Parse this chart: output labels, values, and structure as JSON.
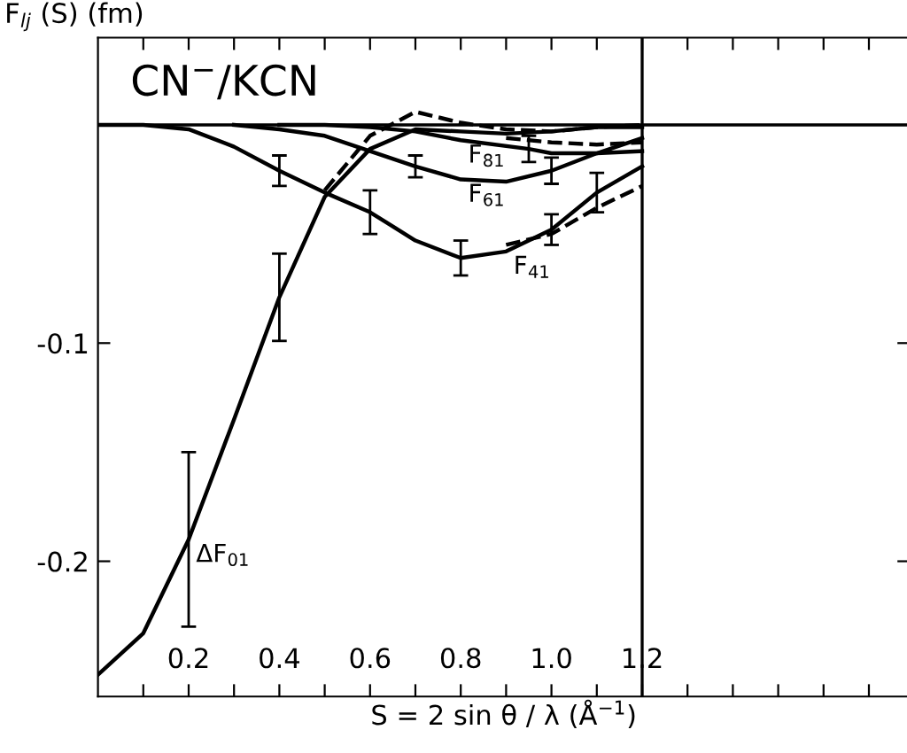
{
  "chart_data": {
    "type": "line",
    "ylabel": "F$_{lj}$ (S) (fm)",
    "xlabel": "S = 2 sin θ / λ (Å$^{−1}$)",
    "annotations": [
      "CN$^{−}$/KCN",
      {
        "text": "F$_{81}$",
        "x": 0.8,
        "y": -0.007
      },
      {
        "text": "F$_{61}$",
        "x": 0.8,
        "y": -0.025
      },
      {
        "text": "F$_{41}$",
        "x": 0.9,
        "y": -0.058
      },
      {
        "text": "ΔF$_{01}$",
        "x": 0.2,
        "y": -0.19
      }
    ],
    "series": [
      {
        "color": "#000000",
        "x": [
          0,
          0.1,
          0.2,
          0.3,
          0.4,
          0.5,
          0.6,
          0.7,
          0.8,
          0.9,
          1.0,
          1.1,
          1.2
        ],
        "values": [
          -0.252,
          -0.233,
          -0.19,
          -0.135,
          -0.079,
          -0.033,
          -0.011,
          -0.002,
          -0.003,
          -0.004,
          -0.003,
          -0.001,
          -0.001
        ],
        "errors": [
          null,
          null,
          0.04,
          null,
          0.02,
          null,
          null,
          null,
          null,
          null,
          null,
          null,
          null
        ]
      },
      {
        "color": "#000000",
        "line_style": "dashed",
        "x": [
          0.5,
          0.6,
          0.7,
          0.8,
          0.9,
          1.0,
          1.1,
          1.2
        ],
        "values": [
          -0.03,
          -0.005,
          0.006,
          0.001,
          -0.002,
          -0.003,
          -0.001,
          0
        ]
      },
      {
        "color": "#000000",
        "x": [
          0,
          0.1,
          0.2,
          0.3,
          0.4,
          0.5,
          0.6,
          0.7,
          0.8,
          0.9,
          1.0,
          1.1,
          1.2
        ],
        "values": [
          0,
          0,
          -0.002,
          -0.01,
          -0.021,
          -0.031,
          -0.04,
          -0.053,
          -0.061,
          -0.058,
          -0.048,
          -0.031,
          -0.019
        ],
        "errors": [
          null,
          null,
          null,
          null,
          0.007,
          null,
          0.01,
          null,
          0.008,
          null,
          0.007,
          0.009,
          null
        ]
      },
      {
        "color": "#000000",
        "line_style": "dashed",
        "x": [
          0.9,
          1.0,
          1.1,
          1.2
        ],
        "values": [
          -0.055,
          -0.05,
          -0.038,
          -0.028
        ]
      },
      {
        "color": "#000000",
        "x": [
          0.3,
          0.4,
          0.5,
          0.6,
          0.7,
          0.8,
          0.9,
          1.0,
          1.1,
          1.2
        ],
        "values": [
          0,
          -0.002,
          -0.005,
          -0.012,
          -0.019,
          -0.025,
          -0.026,
          -0.021,
          -0.013,
          -0.006
        ],
        "errors": [
          null,
          null,
          null,
          null,
          0.005,
          null,
          null,
          0.006,
          null,
          null
        ]
      },
      {
        "color": "#000000",
        "x": [
          0.4,
          0.5,
          0.6,
          0.7,
          0.8,
          0.95,
          1.0,
          1.1,
          1.2
        ],
        "values": [
          0,
          0,
          -0.001,
          -0.003,
          -0.007,
          -0.011,
          -0.013,
          -0.013,
          -0.012
        ],
        "errors": [
          null,
          null,
          null,
          null,
          null,
          0.006,
          null,
          null,
          null
        ]
      },
      {
        "color": "#000000",
        "line_style": "dashed",
        "x": [
          0.9,
          1.0,
          1.1,
          1.2
        ],
        "values": [
          -0.006,
          -0.008,
          -0.009,
          -0.008
        ]
      }
    ],
    "ref_lines": [
      {
        "axis": "y",
        "value": 0,
        "color": "#000000"
      },
      {
        "axis": "x",
        "value": 1.2,
        "color": "#000000"
      }
    ],
    "xlim": [
      0,
      1.79
    ],
    "ylim": [
      -0.262,
      0.04
    ],
    "xticks": [
      {
        "value": 0.1,
        "label": null
      },
      0.2,
      {
        "value": 0.3,
        "label": null
      },
      0.4,
      {
        "value": 0.5,
        "label": null
      },
      0.6,
      {
        "value": 0.7,
        "label": null
      },
      0.8,
      {
        "value": 0.9,
        "label": null
      },
      {
        "value": 1.0,
        "label": "1.0"
      },
      {
        "value": 1.1,
        "label": null
      },
      1.2,
      {
        "value": 1.3,
        "label": null
      },
      {
        "value": 1.4,
        "label": null
      },
      {
        "value": 1.5,
        "label": null
      },
      {
        "value": 1.6,
        "label": null
      },
      {
        "value": 1.7,
        "label": null
      }
    ],
    "yticks": [
      -0.2,
      -0.1
    ],
    "grid": false,
    "legend": false,
    "marker": "none"
  }
}
